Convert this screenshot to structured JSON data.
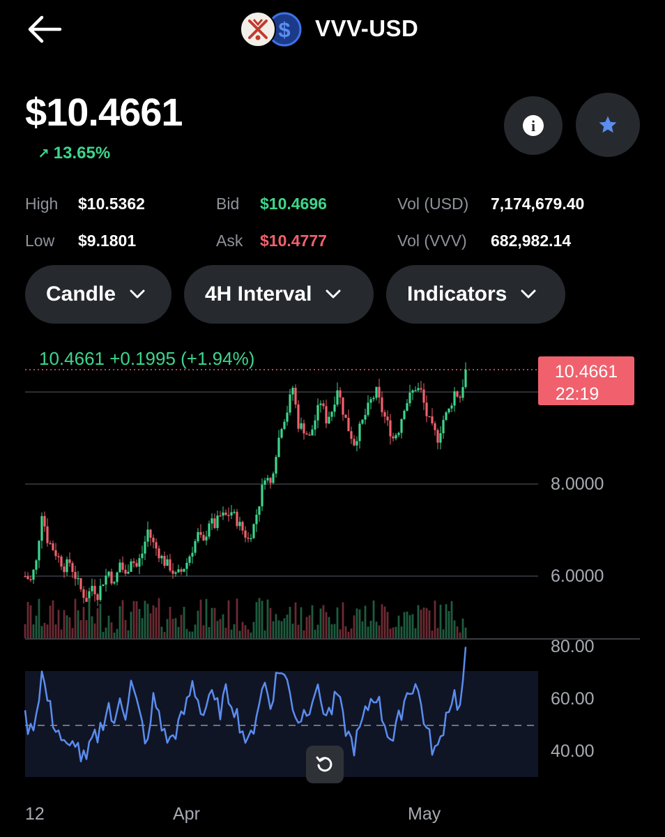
{
  "header": {
    "title": "VVV-USD",
    "back_icon": "arrow-left-icon",
    "base_logo_icon": "vvv-token-logo",
    "quote_logo_icon": "usd-coin-logo",
    "quote_symbol": "$"
  },
  "price": {
    "value": "$10.4661",
    "change_pct": "13.65%",
    "change_color": "#3dd68c"
  },
  "actions": {
    "info_icon": "info-icon",
    "star_icon": "star-icon",
    "info_glyph": "i"
  },
  "stats": {
    "high_label": "High",
    "high_value": "$10.5362",
    "low_label": "Low",
    "low_value": "$9.1801",
    "bid_label": "Bid",
    "bid_value": "$10.4696",
    "ask_label": "Ask",
    "ask_value": "$10.4777",
    "vol_usd_label": "Vol (USD)",
    "vol_usd_value": "7,174,679.40",
    "vol_base_label": "Vol (VVV)",
    "vol_base_value": "682,982.14"
  },
  "controls": {
    "chart_type": "Candle",
    "interval": "4H Interval",
    "indicators": "Indicators"
  },
  "chart_data": {
    "type": "candlestick",
    "header_text": "10.4661  +0.1995 (+1.94%)",
    "last_price": "10.4661",
    "countdown": "22:19",
    "y_ticks": [
      "8.0000",
      "6.0000"
    ],
    "rsi_ticks": [
      "80.00",
      "60.00",
      "40.00"
    ],
    "x_ticks": [
      "12",
      "Apr",
      "May"
    ],
    "colors": {
      "up": "#3dd68c",
      "down": "#f0616d",
      "rsi": "#5b8def",
      "price_tag_bg": "#f0616d"
    },
    "close_path": [
      6.0,
      5.9,
      6.3,
      7.4,
      6.8,
      6.6,
      6.4,
      6.2,
      6.3,
      6.0,
      5.7,
      5.5,
      5.8,
      5.6,
      5.9,
      6.1,
      5.8,
      6.3,
      6.0,
      6.4,
      6.2,
      6.5,
      7.0,
      6.7,
      6.5,
      6.3,
      6.2,
      6.0,
      6.1,
      6.3,
      6.6,
      6.9,
      6.7,
      7.2,
      7.1,
      7.3,
      7.3,
      7.4,
      7.2,
      7.0,
      6.8,
      7.1,
      7.6,
      8.2,
      8.0,
      8.7,
      9.3,
      9.6,
      10.1,
      9.3,
      9.2,
      9.0,
      9.4,
      9.8,
      9.4,
      9.6,
      10.1,
      9.6,
      9.2,
      8.9,
      9.2,
      9.5,
      9.8,
      10.0,
      9.6,
      9.3,
      9.0,
      9.2,
      9.7,
      9.9,
      10.1,
      10.0,
      9.5,
      9.2,
      9.0,
      9.4,
      9.6,
      10.0,
      9.9,
      10.45
    ],
    "rsi_path": [
      52,
      48,
      55,
      70,
      60,
      52,
      48,
      42,
      40,
      45,
      38,
      36,
      44,
      46,
      52,
      58,
      48,
      62,
      55,
      66,
      58,
      50,
      42,
      60,
      55,
      46,
      44,
      48,
      52,
      58,
      66,
      60,
      54,
      62,
      58,
      56,
      62,
      60,
      54,
      48,
      42,
      50,
      60,
      66,
      58,
      68,
      72,
      66,
      58,
      52,
      55,
      58,
      64,
      60,
      54,
      56,
      62,
      52,
      46,
      42,
      48,
      54,
      60,
      62,
      54,
      48,
      44,
      52,
      60,
      64,
      66,
      58,
      48,
      42,
      40,
      50,
      58,
      62,
      56,
      78
    ]
  },
  "reset_icon": "rotate-ccw-icon"
}
